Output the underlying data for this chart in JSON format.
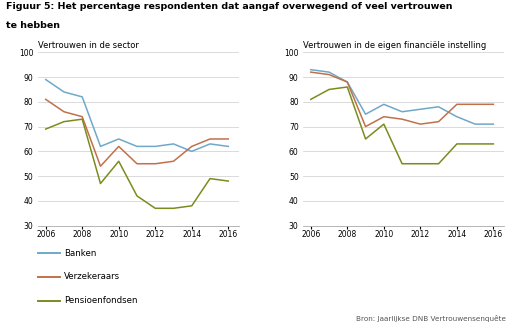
{
  "title_line1": "Figuur 5: Het percentage respondenten dat aangaf overwegend of veel vertrouwen",
  "title_line2": "te hebben",
  "subtitle_left": "Vertrouwen in de sector",
  "subtitle_right": "Vertrouwen in de eigen financiële instelling",
  "source": "Bron: Jaarlijkse DNB Vertrouwensenquête",
  "years": [
    2006,
    2007,
    2008,
    2009,
    2010,
    2011,
    2012,
    2013,
    2014,
    2015,
    2016
  ],
  "left": {
    "banken": [
      89,
      84,
      82,
      62,
      65,
      62,
      62,
      63,
      60,
      63,
      62
    ],
    "verzekeraars": [
      81,
      76,
      74,
      54,
      62,
      55,
      55,
      56,
      62,
      65,
      65
    ],
    "pensioenfondsen": [
      69,
      72,
      73,
      47,
      56,
      42,
      37,
      37,
      38,
      49,
      48
    ]
  },
  "right": {
    "banken": [
      93,
      92,
      88,
      75,
      79,
      76,
      77,
      78,
      74,
      71,
      71
    ],
    "verzekeraars": [
      92,
      91,
      88,
      70,
      74,
      73,
      71,
      72,
      79,
      79,
      79
    ],
    "pensioenfondsen": [
      81,
      85,
      86,
      65,
      71,
      55,
      55,
      55,
      63,
      63,
      63
    ]
  },
  "color_banken": "#6fa8c8",
  "color_verzekeraars": "#c0714a",
  "color_pensioenfondsen": "#7b8c1e",
  "ylim": [
    30,
    100
  ],
  "yticks": [
    30,
    40,
    50,
    60,
    70,
    80,
    90,
    100
  ],
  "legend_labels": [
    "Banken",
    "Verzekeraars",
    "Pensioenfondsen"
  ],
  "bg_color": "#ffffff",
  "grid_color": "#cccccc"
}
